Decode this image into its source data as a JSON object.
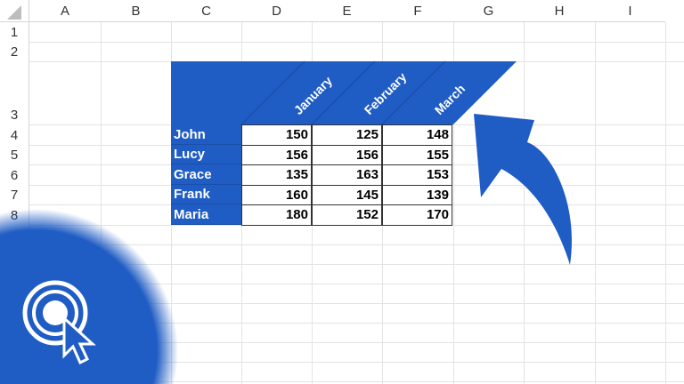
{
  "columns": [
    "A",
    "B",
    "C",
    "D",
    "E",
    "F",
    "G",
    "H",
    "I"
  ],
  "rows": [
    "1",
    "2",
    "3",
    "4",
    "5",
    "6",
    "7",
    "8"
  ],
  "table": {
    "months": [
      "January",
      "February",
      "March"
    ],
    "records": [
      {
        "name": "John",
        "values": [
          "150",
          "125",
          "148"
        ]
      },
      {
        "name": "Lucy",
        "values": [
          "156",
          "156",
          "155"
        ]
      },
      {
        "name": "Grace",
        "values": [
          "135",
          "163",
          "153"
        ]
      },
      {
        "name": "Frank",
        "values": [
          "160",
          "145",
          "139"
        ]
      },
      {
        "name": "Maria",
        "values": [
          "180",
          "152",
          "170"
        ]
      }
    ]
  },
  "colors": {
    "accent": "#1f5cc4"
  },
  "overlay": {
    "icons": [
      "arrow-icon",
      "click-cursor-icon"
    ]
  }
}
